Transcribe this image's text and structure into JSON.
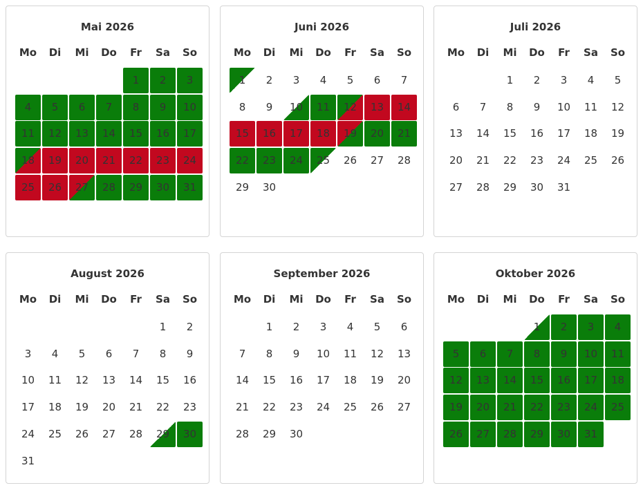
{
  "weekdays": [
    "Mo",
    "Di",
    "Mi",
    "Do",
    "Fr",
    "Sa",
    "So"
  ],
  "legend_colors": {
    "free": "#0a7d0a",
    "booked": "#c2081f"
  },
  "months": [
    {
      "title": "Mai 2026",
      "offset": 4,
      "days": 31,
      "status": {
        "1": "free",
        "2": "free",
        "3": "free",
        "4": "free",
        "5": "free",
        "6": "free",
        "7": "free",
        "8": "free",
        "9": "free",
        "10": "free",
        "11": "free",
        "12": "free",
        "13": "free",
        "14": "free",
        "15": "free",
        "16": "free",
        "17": "free",
        "18": "to-busy",
        "19": "busy",
        "20": "busy",
        "21": "busy",
        "22": "busy",
        "23": "busy",
        "24": "busy",
        "25": "busy",
        "26": "busy",
        "27": "from-busy",
        "28": "free",
        "29": "free",
        "30": "free",
        "31": "free"
      }
    },
    {
      "title": "Juni 2026",
      "offset": 0,
      "days": 30,
      "status": {
        "1": "dep",
        "10": "arr",
        "11": "free",
        "12": "to-busy",
        "13": "busy",
        "14": "busy",
        "15": "busy",
        "16": "busy",
        "17": "busy",
        "18": "busy",
        "19": "from-busy",
        "20": "free",
        "21": "free",
        "22": "free",
        "23": "free",
        "24": "free",
        "25": "dep"
      }
    },
    {
      "title": "Juli 2026",
      "offset": 2,
      "days": 31,
      "status": {}
    },
    {
      "title": "August 2026",
      "offset": 5,
      "days": 31,
      "status": {
        "29": "arr",
        "30": "free"
      }
    },
    {
      "title": "September 2026",
      "offset": 1,
      "days": 30,
      "status": {}
    },
    {
      "title": "Oktober 2026",
      "offset": 3,
      "days": 31,
      "status": {
        "1": "arr",
        "2": "free",
        "3": "free",
        "4": "free",
        "5": "free",
        "6": "free",
        "7": "free",
        "8": "free",
        "9": "free",
        "10": "free",
        "11": "free",
        "12": "free",
        "13": "free",
        "14": "free",
        "15": "free",
        "16": "free",
        "17": "free",
        "18": "free",
        "19": "free",
        "20": "free",
        "21": "free",
        "22": "free",
        "23": "free",
        "24": "free",
        "25": "free",
        "26": "free",
        "27": "free",
        "28": "free",
        "29": "free",
        "30": "free",
        "31": "free"
      }
    }
  ]
}
